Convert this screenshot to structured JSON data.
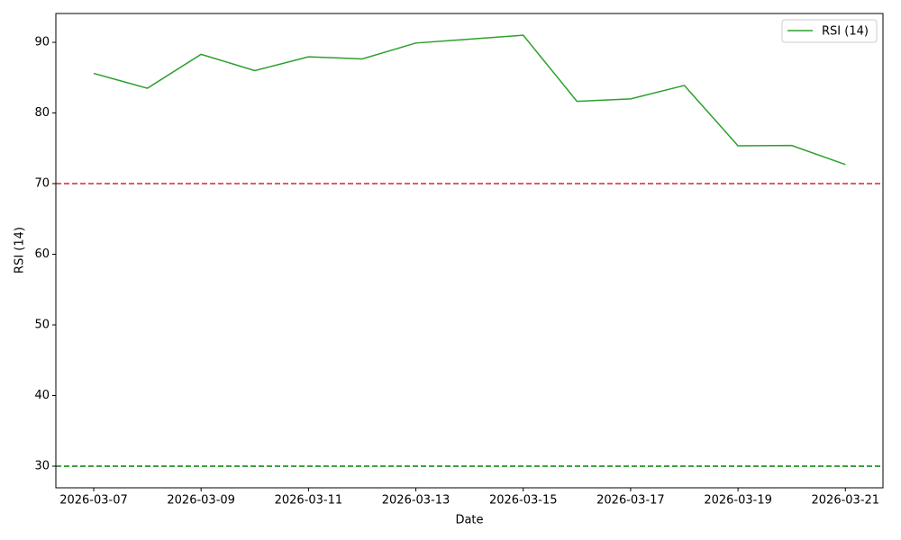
{
  "chart_data": {
    "type": "line",
    "x": [
      "2026-03-07",
      "2026-03-08",
      "2026-03-09",
      "2026-03-10",
      "2026-03-11",
      "2026-03-12",
      "2026-03-13",
      "2026-03-14",
      "2026-03-15",
      "2026-03-16",
      "2026-03-17",
      "2026-03-18",
      "2026-03-19",
      "2026-03-20",
      "2026-03-21"
    ],
    "series": [
      {
        "name": "RSI (14)",
        "color": "#2ca02c",
        "values": [
          85.6,
          83.5,
          88.3,
          86.0,
          87.95,
          87.65,
          89.9,
          90.45,
          91.0,
          81.65,
          82.0,
          83.9,
          75.35,
          75.4,
          72.7
        ]
      }
    ],
    "hlines": [
      {
        "value": 70,
        "color": "#d62728"
      },
      {
        "value": 30,
        "color": "#008000"
      }
    ],
    "xlabel": "Date",
    "ylabel": "RSI (14)",
    "xlim": [
      "2026-03-06T07:05Z",
      "2026-03-21T16:48Z"
    ],
    "xticks": [
      "2026-03-07",
      "2026-03-09",
      "2026-03-11",
      "2026-03-13",
      "2026-03-15",
      "2026-03-17",
      "2026-03-19",
      "2026-03-21"
    ],
    "ylim": [
      26.94,
      94.08
    ],
    "yticks": [
      30,
      40,
      50,
      60,
      70,
      80,
      90
    ],
    "legend": "upper right"
  }
}
